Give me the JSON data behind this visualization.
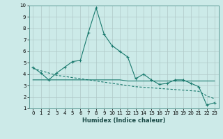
{
  "xlabel": "Humidex (Indice chaleur)",
  "bg_color": "#cceae8",
  "grid_color": "#b0c8c8",
  "line_color": "#1a7a6e",
  "xlim": [
    -0.5,
    23.5
  ],
  "ylim": [
    1,
    10
  ],
  "xticks": [
    0,
    1,
    2,
    3,
    4,
    5,
    6,
    7,
    8,
    9,
    10,
    11,
    12,
    13,
    14,
    15,
    16,
    17,
    18,
    19,
    20,
    21,
    22,
    23
  ],
  "yticks": [
    1,
    2,
    3,
    4,
    5,
    6,
    7,
    8,
    9,
    10
  ],
  "series1_x": [
    0,
    1,
    2,
    3,
    4,
    5,
    6,
    7,
    8,
    9,
    10,
    11,
    12,
    13,
    14,
    15,
    16,
    17,
    18,
    19,
    20,
    21,
    22,
    23
  ],
  "series1_y": [
    4.6,
    4.1,
    3.5,
    4.1,
    4.6,
    5.1,
    5.2,
    7.6,
    9.8,
    7.5,
    6.5,
    6.0,
    5.5,
    3.6,
    4.0,
    3.5,
    3.1,
    3.2,
    3.5,
    3.5,
    3.2,
    2.9,
    1.3,
    1.5
  ],
  "series2_x": [
    0,
    1,
    2,
    3,
    4,
    5,
    6,
    7,
    8,
    9,
    10,
    11,
    12,
    13,
    14,
    15,
    16,
    17,
    18,
    19,
    20,
    21,
    22,
    23
  ],
  "series2_y": [
    3.5,
    3.5,
    3.5,
    3.5,
    3.5,
    3.5,
    3.5,
    3.5,
    3.5,
    3.5,
    3.5,
    3.5,
    3.4,
    3.4,
    3.4,
    3.4,
    3.4,
    3.4,
    3.4,
    3.4,
    3.4,
    3.4,
    3.4,
    3.4
  ],
  "series3_x": [
    0,
    1,
    2,
    3,
    4,
    5,
    6,
    7,
    8,
    9,
    10,
    11,
    12,
    13,
    14,
    15,
    16,
    17,
    18,
    19,
    20,
    21,
    22,
    23
  ],
  "series3_y": [
    4.5,
    4.3,
    4.1,
    3.9,
    3.8,
    3.7,
    3.6,
    3.5,
    3.4,
    3.3,
    3.2,
    3.1,
    3.0,
    2.9,
    2.85,
    2.8,
    2.75,
    2.7,
    2.65,
    2.6,
    2.55,
    2.5,
    2.1,
    1.85
  ],
  "xlabel_fontsize": 6,
  "tick_fontsize": 5
}
